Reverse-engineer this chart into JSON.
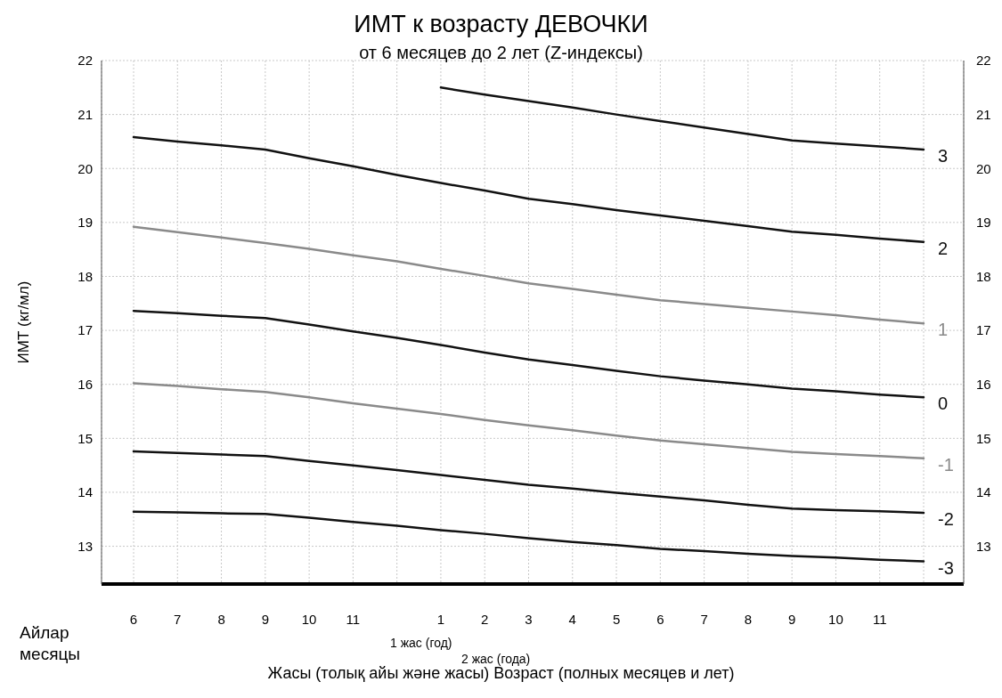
{
  "chart_data": {
    "type": "line",
    "title": "ИМТ к возрасту ДЕВОЧКИ",
    "subtitle": "от 6 месяцев до 2 лет (Z-индексы)",
    "xlabel": "Жасы (толық айы және жасы) Возраст (полных месяцев и лет)",
    "ylabel": "ИМТ (кг/мл)",
    "annotations": [
      "Айлар",
      "месяцы",
      "1 жас (год)",
      "2 жас (года)"
    ],
    "categories": [
      "6",
      "7",
      "8",
      "9",
      "10",
      "11",
      null,
      "1",
      "2",
      "3",
      "4",
      "5",
      "6",
      "7",
      "8",
      "9",
      "10",
      "11",
      null
    ],
    "series": [
      {
        "name": "3",
        "color": "#111111",
        "values": [
          null,
          null,
          null,
          null,
          null,
          null,
          null,
          21.5,
          21.37,
          21.25,
          21.13,
          21.0,
          20.88,
          20.76,
          20.64,
          20.52,
          20.46,
          20.41,
          20.35
        ]
      },
      {
        "name": "2",
        "color": "#111111",
        "values": [
          20.58,
          20.5,
          20.43,
          20.35,
          20.19,
          20.04,
          19.88,
          19.73,
          19.59,
          19.44,
          19.34,
          19.23,
          19.13,
          19.03,
          18.93,
          18.83,
          18.77,
          18.7,
          18.64
        ]
      },
      {
        "name": "1",
        "color": "#8a8a8a",
        "values": [
          18.92,
          18.82,
          18.72,
          18.62,
          18.51,
          18.39,
          18.28,
          18.14,
          18.01,
          17.87,
          17.77,
          17.66,
          17.56,
          17.49,
          17.42,
          17.35,
          17.28,
          17.2,
          17.13
        ]
      },
      {
        "name": "0",
        "color": "#111111",
        "values": [
          17.36,
          17.32,
          17.27,
          17.23,
          17.11,
          16.98,
          16.86,
          16.73,
          16.59,
          16.46,
          16.36,
          16.25,
          16.15,
          16.07,
          16.0,
          15.92,
          15.87,
          15.81,
          15.76
        ]
      },
      {
        "name": "-1",
        "color": "#8a8a8a",
        "values": [
          16.02,
          15.97,
          15.91,
          15.86,
          15.76,
          15.65,
          15.55,
          15.45,
          15.34,
          15.24,
          15.15,
          15.05,
          14.96,
          14.89,
          14.82,
          14.75,
          14.71,
          14.67,
          14.63
        ]
      },
      {
        "name": "-2",
        "color": "#111111",
        "values": [
          14.76,
          14.73,
          14.7,
          14.67,
          14.58,
          14.5,
          14.41,
          14.32,
          14.23,
          14.14,
          14.07,
          13.99,
          13.92,
          13.85,
          13.77,
          13.7,
          13.67,
          13.65,
          13.62
        ]
      },
      {
        "name": "-3",
        "color": "#111111",
        "values": [
          13.64,
          13.63,
          13.61,
          13.6,
          13.53,
          13.45,
          13.38,
          13.3,
          13.23,
          13.15,
          13.08,
          13.02,
          12.95,
          12.91,
          12.86,
          12.82,
          12.79,
          12.75,
          12.72
        ]
      }
    ],
    "ylim": [
      12.3,
      22
    ],
    "yticks": [
      13,
      14,
      15,
      16,
      17,
      18,
      19,
      20,
      21,
      22
    ],
    "y2lim": [
      12.3,
      22
    ],
    "y2ticks": [
      13,
      14,
      15,
      16,
      17,
      18,
      19,
      20,
      21,
      22
    ],
    "grid": true,
    "legend": false,
    "marker": "none",
    "line_style": "solid"
  }
}
